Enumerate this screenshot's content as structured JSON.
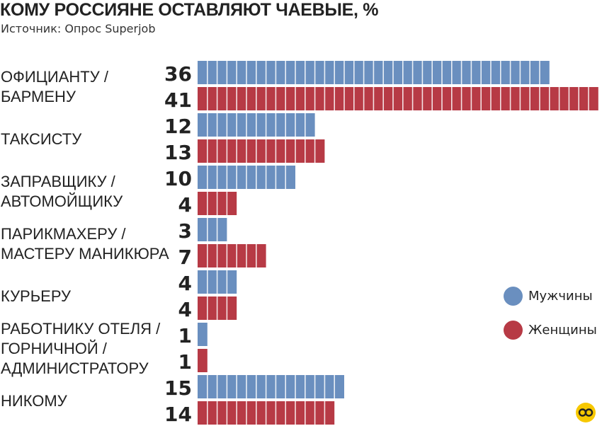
{
  "title": "КОМУ РОССИЯНЕ ОСТАВЛЯЮТ ЧАЕВЫЕ, %",
  "subtitle": "Источник: Опрос Superjob",
  "colors": {
    "men": "#6a8fbf",
    "women": "#b73a45",
    "text": "#222222"
  },
  "legend": [
    {
      "label": "Мужчины",
      "color": "#6a8fbf",
      "icon": "blue-circle-icon"
    },
    {
      "label": "Женщины",
      "color": "#b73a45",
      "icon": "red-circle-icon"
    }
  ],
  "logo": {
    "icon": "publisher-logo-icon"
  },
  "chart_data": {
    "type": "bar",
    "orientation": "horizontal",
    "title": "КОМУ РОССИЯНЕ ОСТАВЛЯЮТ ЧАЕВЫЕ, %",
    "categories": [
      [
        "ОФИЦИАНТУ /",
        "БАРМЕНУ"
      ],
      [
        "ТАКСИСТУ"
      ],
      [
        "ЗАПРАВЩИКУ /",
        "АВТОМОЙЩИКУ"
      ],
      [
        "ПАРИКМАХЕРУ /",
        "МАСТЕРУ МАНИКЮРА"
      ],
      [
        "КУРЬЕРУ"
      ],
      [
        "РАБОТНИКУ ОТЕЛЯ /",
        "ГОРНИЧНОЙ /",
        "АДМИНИСТРАТОРУ"
      ],
      [
        "НИКОМУ"
      ]
    ],
    "series": [
      {
        "name": "Мужчины",
        "values": [
          36,
          12,
          10,
          3,
          4,
          1,
          15
        ]
      },
      {
        "name": "Женщины",
        "values": [
          41,
          13,
          4,
          7,
          4,
          1,
          14
        ]
      }
    ],
    "xlim": [
      0,
      41
    ],
    "grid": false,
    "legend_position": "bottom-right",
    "data_labels": true
  }
}
